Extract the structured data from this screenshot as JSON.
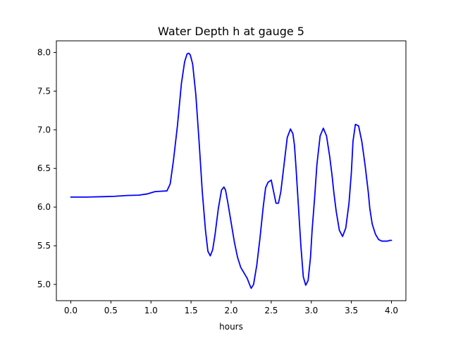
{
  "chart_data": {
    "type": "line",
    "title": "Water Depth h at gauge 5",
    "xlabel": "hours",
    "ylabel": "",
    "xlim": [
      -0.18,
      4.18
    ],
    "ylim": [
      4.79,
      8.15
    ],
    "xticks": [
      0.0,
      0.5,
      1.0,
      1.5,
      2.0,
      2.5,
      3.0,
      3.5,
      4.0
    ],
    "xtick_labels": [
      "0.0",
      "0.5",
      "1.0",
      "1.5",
      "2.0",
      "2.5",
      "3.0",
      "3.5",
      "4.0"
    ],
    "yticks": [
      5.0,
      5.5,
      6.0,
      6.5,
      7.0,
      7.5,
      8.0
    ],
    "ytick_labels": [
      "5.0",
      "5.5",
      "6.0",
      "6.5",
      "7.0",
      "7.5",
      "8.0"
    ],
    "grid": false,
    "series": [
      {
        "color": "#0000ff",
        "x": [
          0.0,
          0.2,
          0.4,
          0.55,
          0.7,
          0.85,
          0.95,
          1.05,
          1.12,
          1.2,
          1.24,
          1.28,
          1.33,
          1.38,
          1.42,
          1.45,
          1.47,
          1.49,
          1.52,
          1.56,
          1.6,
          1.64,
          1.68,
          1.71,
          1.74,
          1.77,
          1.8,
          1.84,
          1.88,
          1.91,
          1.93,
          1.96,
          2.0,
          2.04,
          2.08,
          2.12,
          2.16,
          2.2,
          2.23,
          2.25,
          2.28,
          2.32,
          2.36,
          2.4,
          2.43,
          2.46,
          2.5,
          2.53,
          2.56,
          2.59,
          2.62,
          2.66,
          2.7,
          2.74,
          2.77,
          2.79,
          2.81,
          2.84,
          2.87,
          2.9,
          2.93,
          2.96,
          2.99,
          3.01,
          3.04,
          3.07,
          3.11,
          3.15,
          3.19,
          3.23,
          3.26,
          3.28,
          3.31,
          3.35,
          3.39,
          3.43,
          3.47,
          3.5,
          3.52,
          3.55,
          3.59,
          3.63,
          3.67,
          3.71,
          3.73,
          3.76,
          3.8,
          3.84,
          3.88,
          3.92,
          3.95,
          3.98,
          4.0
        ],
        "y": [
          6.13,
          6.13,
          6.135,
          6.14,
          6.15,
          6.155,
          6.17,
          6.2,
          6.205,
          6.21,
          6.3,
          6.6,
          7.05,
          7.6,
          7.88,
          7.98,
          7.99,
          7.97,
          7.85,
          7.45,
          6.85,
          6.2,
          5.7,
          5.43,
          5.37,
          5.45,
          5.65,
          5.98,
          6.22,
          6.26,
          6.22,
          6.05,
          5.8,
          5.55,
          5.35,
          5.22,
          5.15,
          5.08,
          5.0,
          4.95,
          5.0,
          5.25,
          5.6,
          6.0,
          6.25,
          6.32,
          6.35,
          6.2,
          6.05,
          6.05,
          6.2,
          6.55,
          6.9,
          7.01,
          6.95,
          6.8,
          6.5,
          6.0,
          5.5,
          5.1,
          4.99,
          5.05,
          5.35,
          5.7,
          6.1,
          6.55,
          6.92,
          7.02,
          6.92,
          6.65,
          6.4,
          6.2,
          5.95,
          5.7,
          5.62,
          5.73,
          6.05,
          6.45,
          6.85,
          7.07,
          7.05,
          6.85,
          6.55,
          6.2,
          5.98,
          5.78,
          5.65,
          5.58,
          5.56,
          5.56,
          5.56,
          5.57,
          5.57
        ]
      }
    ]
  }
}
